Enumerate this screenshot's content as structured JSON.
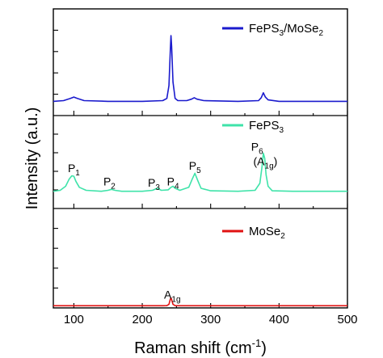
{
  "chart_data": {
    "type": "line",
    "xlabel": "Raman shift (cm",
    "xlabel_sup": "-1",
    "xlabel_end": ")",
    "ylabel": "Intensity (a.u.)",
    "xlim": [
      70,
      500
    ],
    "xticks": [
      100,
      200,
      300,
      400,
      500
    ],
    "grid": false,
    "layout": "three stacked panels sharing the x axis",
    "panels": [
      {
        "name": "FePS3/MoSe2",
        "legend_main": "FePS",
        "legend_sub": "3",
        "legend_tail": "/MoSe",
        "legend_sub2": "2",
        "color": "#1a1acd",
        "legend_position": "top-right",
        "x": [
          70,
          85,
          95,
          100,
          105,
          115,
          150,
          200,
          230,
          236,
          239,
          241,
          242,
          243,
          245,
          248,
          252,
          265,
          272,
          276,
          280,
          290,
          340,
          370,
          374,
          377,
          380,
          384,
          400,
          450,
          500
        ],
        "y": [
          0.08,
          0.09,
          0.12,
          0.14,
          0.12,
          0.09,
          0.08,
          0.08,
          0.09,
          0.12,
          0.3,
          0.8,
          1.0,
          0.85,
          0.35,
          0.12,
          0.09,
          0.09,
          0.11,
          0.13,
          0.11,
          0.09,
          0.08,
          0.09,
          0.13,
          0.2,
          0.14,
          0.1,
          0.08,
          0.08,
          0.08
        ]
      },
      {
        "name": "FePS3",
        "legend_main": "FePS",
        "legend_sub": "3",
        "color": "#3fe3a9",
        "legend_position": "top-right",
        "x": [
          70,
          80,
          88,
          93,
          97,
          100,
          103,
          108,
          118,
          140,
          150,
          155,
          160,
          170,
          200,
          215,
          222,
          228,
          238,
          242,
          245,
          248,
          255,
          268,
          273,
          277,
          281,
          286,
          300,
          340,
          365,
          372,
          375,
          377,
          379,
          381,
          384,
          390,
          420,
          460,
          500
        ],
        "y": [
          0.12,
          0.14,
          0.22,
          0.36,
          0.43,
          0.42,
          0.32,
          0.2,
          0.14,
          0.12,
          0.14,
          0.16,
          0.14,
          0.12,
          0.12,
          0.14,
          0.18,
          0.14,
          0.15,
          0.2,
          0.22,
          0.18,
          0.14,
          0.2,
          0.36,
          0.48,
          0.34,
          0.18,
          0.13,
          0.12,
          0.14,
          0.28,
          0.6,
          0.88,
          0.78,
          0.45,
          0.22,
          0.13,
          0.12,
          0.12,
          0.12
        ]
      },
      {
        "name": "MoSe2",
        "legend_main": "MoSe",
        "legend_sub": "2",
        "color": "#e01212",
        "legend_position": "top-right",
        "x": [
          70,
          100,
          150,
          200,
          230,
          236,
          239,
          241,
          242,
          243,
          245,
          248,
          255,
          300,
          400,
          500
        ],
        "y": [
          0.02,
          0.02,
          0.02,
          0.02,
          0.02,
          0.03,
          0.2,
          0.85,
          1.0,
          0.8,
          0.2,
          0.03,
          0.02,
          0.02,
          0.02,
          0.02
        ]
      }
    ],
    "annotations": [
      {
        "panel": 1,
        "x": 100,
        "y": 0.5,
        "main": "P",
        "sub": "1"
      },
      {
        "panel": 1,
        "x": 152,
        "y": 0.24,
        "main": "P",
        "sub": "2"
      },
      {
        "panel": 1,
        "x": 217,
        "y": 0.21,
        "main": "P",
        "sub": "3"
      },
      {
        "panel": 1,
        "x": 245,
        "y": 0.24,
        "main": "P",
        "sub": "4"
      },
      {
        "panel": 1,
        "x": 277,
        "y": 0.55,
        "main": "P",
        "sub": "5"
      },
      {
        "panel": 1,
        "x": 368,
        "y": 0.93,
        "main": "P",
        "sub": "6"
      },
      {
        "panel": 1,
        "x": 380,
        "y": 0.64,
        "main": "(A",
        "sub": "1g",
        "tail": ")"
      },
      {
        "panel": 2,
        "x": 244,
        "y": 0.9,
        "main": "A",
        "sub": "1g"
      }
    ]
  }
}
